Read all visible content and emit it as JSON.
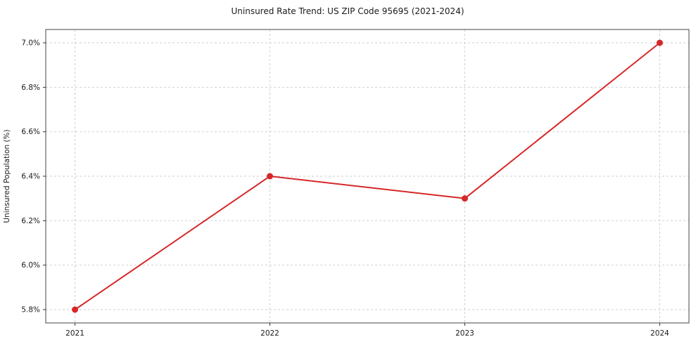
{
  "chart_data": {
    "type": "line",
    "title": "Uninsured Rate Trend: US ZIP Code 95695 (2021-2024)",
    "xlabel": "",
    "ylabel": "Uninsured Population (%)",
    "x": [
      2021,
      2022,
      2023,
      2024
    ],
    "x_tick_labels": [
      "2021",
      "2022",
      "2023",
      "2024"
    ],
    "series": [
      {
        "name": "Uninsured Population (%)",
        "values": [
          5.8,
          6.4,
          6.3,
          7.0
        ]
      }
    ],
    "y_ticks": [
      5.8,
      6.0,
      6.2,
      6.4,
      6.6,
      6.8,
      7.0
    ],
    "y_tick_labels": [
      "5.8%",
      "6.0%",
      "6.2%",
      "6.4%",
      "6.6%",
      "6.8%",
      "7.0%"
    ],
    "xlim": [
      2020.85,
      2024.15
    ],
    "ylim": [
      5.74,
      7.06
    ],
    "grid": true,
    "legend_position": "none",
    "line_color": "#d62728",
    "marker_color": "#d62728",
    "grid_color": "#cccccc",
    "border_color": "#444444"
  }
}
